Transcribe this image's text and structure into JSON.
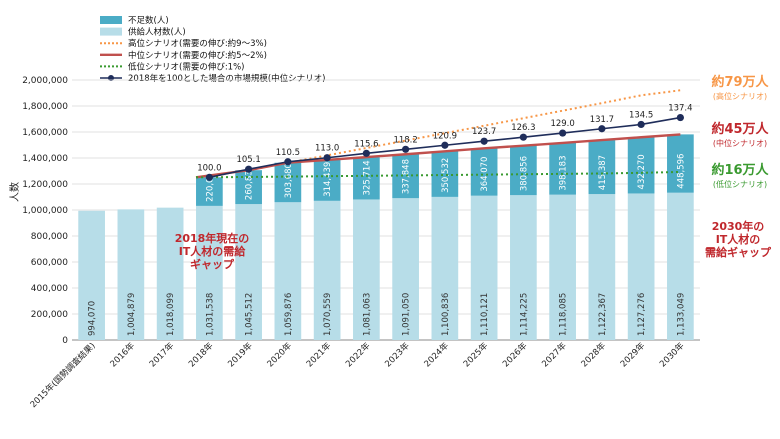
{
  "chart_data": {
    "type": "bar+line",
    "ylabel": "人数",
    "ylim": [
      0,
      2000000
    ],
    "yticks": [
      "0",
      "200,000",
      "400,000",
      "600,000",
      "800,000",
      "1,000,000",
      "1,200,000",
      "1,400,000",
      "1,600,000",
      "1,800,000",
      "2,000,000"
    ],
    "categories": [
      "2015年(国勢調査結果)",
      "2016年",
      "2017年",
      "2018年",
      "2019年",
      "2020年",
      "2021年",
      "2022年",
      "2023年",
      "2024年",
      "2025年",
      "2026年",
      "2027年",
      "2028年",
      "2029年",
      "2030年"
    ],
    "supply": [
      994070,
      1004879,
      1018099,
      1031538,
      1045512,
      1059876,
      1070559,
      1081063,
      1091050,
      1100836,
      1110121,
      1114225,
      1118085,
      1122367,
      1127276,
      1133049
    ],
    "supply_labels": [
      "994,070",
      "1,004,879",
      "1,018,099",
      "1,031,538",
      "1,045,512",
      "1,059,876",
      "1,070,559",
      "1,081,063",
      "1,091,050",
      "1,100,836",
      "1,110,121",
      "1,114,225",
      "1,118,085",
      "1,122,367",
      "1,127,276",
      "1,133,049"
    ],
    "shortage": [
      null,
      null,
      null,
      220000,
      260835,
      303680,
      314439,
      325714,
      337848,
      350532,
      364070,
      380856,
      398183,
      415387,
      432270,
      448596
    ],
    "shortage_labels": [
      null,
      null,
      null,
      "220,000",
      "260,835",
      "303,680",
      "314,439",
      "325,714",
      "337,848",
      "350,532",
      "364,070",
      "380,856",
      "398,183",
      "415,387",
      "432,270",
      "448,596"
    ],
    "high_total": [
      null,
      null,
      null,
      1251538,
      1306347,
      1363556,
      1420000,
      1477000,
      1534000,
      1591000,
      1648000,
      1706000,
      1764000,
      1822000,
      1882000,
      1921000
    ],
    "low_total": [
      null,
      null,
      null,
      1251538,
      1254000,
      1257000,
      1260000,
      1263000,
      1266000,
      1269000,
      1272000,
      1275000,
      1278000,
      1281000,
      1286000,
      1293000
    ],
    "market_index": [
      null,
      null,
      null,
      100.0,
      105.1,
      110.5,
      113.0,
      115.6,
      118.2,
      120.9,
      123.7,
      126.3,
      129.0,
      131.7,
      134.5,
      137.4
    ],
    "market_index_labels": [
      null,
      null,
      null,
      "100.0",
      "105.1",
      "110.5",
      "113.0",
      "115.6",
      "118.2",
      "120.9",
      "123.7",
      "126.3",
      "129.0",
      "131.7",
      "134.5",
      "137.4"
    ],
    "market_index_positions": [
      null,
      null,
      null,
      1251538,
      1314000,
      1371000,
      1402000,
      1436000,
      1467000,
      1498000,
      1529000,
      1560000,
      1592000,
      1625000,
      1658000,
      1711000
    ],
    "legend": [
      {
        "key": "shortage",
        "label": "不足数(人)"
      },
      {
        "key": "supply",
        "label": "供給人材数(人)"
      },
      {
        "key": "high",
        "label": "高位シナリオ(需要の伸び:約9～3%)"
      },
      {
        "key": "mid",
        "label": "中位シナリオ(需要の伸び:約5～2%)"
      },
      {
        "key": "low",
        "label": "低位シナリオ(需要の伸び:1%)"
      },
      {
        "key": "index",
        "label": "2018年を100とした場合の市場規模(中位シナリオ)"
      }
    ],
    "annotations": {
      "high": {
        "big": "約79万人",
        "small": "(高位シナリオ)"
      },
      "mid": {
        "big": "約45万人",
        "small": "(中位シナリオ)"
      },
      "low": {
        "big": "約16万人",
        "small": "(低位シナリオ)"
      },
      "gap2018": [
        "2018年現在の",
        "IT人材の需給",
        "ギャップ"
      ],
      "gap2030": [
        "2030年の",
        "IT人材の",
        "需給ギャップ"
      ]
    }
  },
  "colors": {
    "shortage": "#4bacc6",
    "supply": "#b7dde8",
    "high": "#f79646",
    "mid": "#c0504d",
    "low": "#3a9a30",
    "index": "#1f2d5a",
    "accent": "#c0282d"
  }
}
